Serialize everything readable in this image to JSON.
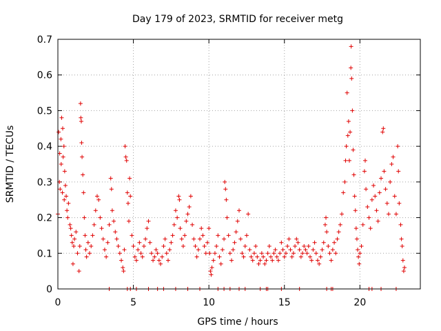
{
  "chart_data": {
    "type": "scatter",
    "title": "Day 179 of 2023, SRMTID for receiver metg",
    "xlabel": "GPS time / hours",
    "ylabel": "SRMTID / TECUs",
    "xlim": [
      0,
      24
    ],
    "ylim": [
      0,
      0.7
    ],
    "x_ticks": [
      0,
      5,
      10,
      15,
      20
    ],
    "y_ticks": [
      0,
      0.1,
      0.2,
      0.3,
      0.4,
      0.5,
      0.6,
      0.7
    ],
    "x_tick_labels": [
      "0",
      "5",
      "10",
      "15",
      "20"
    ],
    "y_tick_labels": [
      "0",
      "0.1",
      "0.2",
      "0.3",
      "0.4",
      "0.5",
      "0.6",
      "0.7"
    ],
    "grid": true,
    "marker": "+",
    "color": "#e00000",
    "series": [
      {
        "name": "SRMTID",
        "points": [
          [
            0.0,
            0.21
          ],
          [
            0.05,
            0.44
          ],
          [
            0.1,
            0.3
          ],
          [
            0.12,
            0.38
          ],
          [
            0.15,
            0.28
          ],
          [
            0.2,
            0.42
          ],
          [
            0.22,
            0.35
          ],
          [
            0.25,
            0.48
          ],
          [
            0.3,
            0.27
          ],
          [
            0.32,
            0.45
          ],
          [
            0.35,
            0.37
          ],
          [
            0.4,
            0.4
          ],
          [
            0.42,
            0.25
          ],
          [
            0.45,
            0.33
          ],
          [
            0.5,
            0.29
          ],
          [
            0.55,
            0.26
          ],
          [
            0.6,
            0.22
          ],
          [
            0.65,
            0.2
          ],
          [
            0.7,
            0.24
          ],
          [
            0.8,
            0.18
          ],
          [
            0.85,
            0.17
          ],
          [
            0.9,
            0.15
          ],
          [
            0.95,
            0.13
          ],
          [
            1.0,
            0.07
          ],
          [
            1.05,
            0.12
          ],
          [
            1.1,
            0.14
          ],
          [
            1.2,
            0.16
          ],
          [
            1.3,
            0.1
          ],
          [
            1.4,
            0.05
          ],
          [
            1.45,
            0.12
          ],
          [
            1.5,
            0.52
          ],
          [
            1.52,
            0.48
          ],
          [
            1.55,
            0.47
          ],
          [
            1.57,
            0.41
          ],
          [
            1.6,
            0.37
          ],
          [
            1.65,
            0.32
          ],
          [
            1.7,
            0.27
          ],
          [
            1.75,
            0.2
          ],
          [
            1.8,
            0.15
          ],
          [
            1.85,
            0.11
          ],
          [
            1.9,
            0.09
          ],
          [
            2.0,
            0.13
          ],
          [
            2.1,
            0.1
          ],
          [
            2.2,
            0.12
          ],
          [
            2.3,
            0.15
          ],
          [
            2.4,
            0.18
          ],
          [
            2.5,
            0.22
          ],
          [
            2.6,
            0.26
          ],
          [
            2.7,
            0.25
          ],
          [
            2.8,
            0.2
          ],
          [
            2.9,
            0.17
          ],
          [
            3.0,
            0.14
          ],
          [
            3.1,
            0.11
          ],
          [
            3.2,
            0.09
          ],
          [
            3.3,
            0.13
          ],
          [
            3.4,
            0.18
          ],
          [
            3.5,
            0.31
          ],
          [
            3.55,
            0.28
          ],
          [
            3.6,
            0.22
          ],
          [
            3.7,
            0.19
          ],
          [
            3.8,
            0.16
          ],
          [
            3.9,
            0.14
          ],
          [
            4.0,
            0.12
          ],
          [
            4.1,
            0.1
          ],
          [
            4.2,
            0.08
          ],
          [
            4.3,
            0.06
          ],
          [
            4.35,
            0.05
          ],
          [
            4.4,
            0.11
          ],
          [
            4.45,
            0.4
          ],
          [
            4.5,
            0.37
          ],
          [
            4.55,
            0.36
          ],
          [
            4.6,
            0.27
          ],
          [
            4.65,
            0.24
          ],
          [
            4.7,
            0.19
          ],
          [
            4.75,
            0.31
          ],
          [
            4.8,
            0.26
          ],
          [
            4.9,
            0.15
          ],
          [
            5.0,
            0.12
          ],
          [
            5.1,
            0.09
          ],
          [
            5.2,
            0.08
          ],
          [
            5.3,
            0.11
          ],
          [
            5.4,
            0.13
          ],
          [
            5.5,
            0.1
          ],
          [
            5.6,
            0.09
          ],
          [
            5.7,
            0.12
          ],
          [
            5.8,
            0.14
          ],
          [
            5.9,
            0.17
          ],
          [
            6.0,
            0.19
          ],
          [
            6.1,
            0.13
          ],
          [
            6.2,
            0.1
          ],
          [
            6.3,
            0.08
          ],
          [
            6.4,
            0.09
          ],
          [
            6.5,
            0.11
          ],
          [
            6.6,
            0.1
          ],
          [
            6.7,
            0.08
          ],
          [
            6.8,
            0.07
          ],
          [
            6.9,
            0.09
          ],
          [
            7.0,
            0.12
          ],
          [
            7.1,
            0.14
          ],
          [
            7.2,
            0.1
          ],
          [
            7.3,
            0.08
          ],
          [
            7.4,
            0.11
          ],
          [
            7.5,
            0.13
          ],
          [
            7.6,
            0.15
          ],
          [
            7.7,
            0.18
          ],
          [
            7.8,
            0.22
          ],
          [
            7.9,
            0.2
          ],
          [
            8.0,
            0.26
          ],
          [
            8.05,
            0.25
          ],
          [
            8.1,
            0.17
          ],
          [
            8.2,
            0.14
          ],
          [
            8.3,
            0.12
          ],
          [
            8.4,
            0.15
          ],
          [
            8.5,
            0.19
          ],
          [
            8.6,
            0.21
          ],
          [
            8.7,
            0.23
          ],
          [
            8.8,
            0.26
          ],
          [
            8.9,
            0.18
          ],
          [
            9.0,
            0.14
          ],
          [
            9.1,
            0.12
          ],
          [
            9.2,
            0.09
          ],
          [
            9.3,
            0.11
          ],
          [
            9.4,
            0.14
          ],
          [
            9.5,
            0.17
          ],
          [
            9.6,
            0.15
          ],
          [
            9.7,
            0.12
          ],
          [
            9.8,
            0.1
          ],
          [
            9.9,
            0.13
          ],
          [
            10.0,
            0.17
          ],
          [
            10.05,
            0.1
          ],
          [
            10.1,
            0.05
          ],
          [
            10.15,
            0.04
          ],
          [
            10.2,
            0.06
          ],
          [
            10.3,
            0.08
          ],
          [
            10.4,
            0.1
          ],
          [
            10.5,
            0.12
          ],
          [
            10.6,
            0.15
          ],
          [
            10.7,
            0.09
          ],
          [
            10.8,
            0.07
          ],
          [
            10.9,
            0.11
          ],
          [
            11.0,
            0.14
          ],
          [
            11.05,
            0.3
          ],
          [
            11.1,
            0.28
          ],
          [
            11.15,
            0.25
          ],
          [
            11.2,
            0.2
          ],
          [
            11.3,
            0.15
          ],
          [
            11.4,
            0.1
          ],
          [
            11.5,
            0.08
          ],
          [
            11.6,
            0.11
          ],
          [
            11.7,
            0.13
          ],
          [
            11.8,
            0.16
          ],
          [
            11.9,
            0.19
          ],
          [
            12.0,
            0.22
          ],
          [
            12.1,
            0.14
          ],
          [
            12.2,
            0.1
          ],
          [
            12.3,
            0.09
          ],
          [
            12.4,
            0.12
          ],
          [
            12.5,
            0.15
          ],
          [
            12.6,
            0.21
          ],
          [
            12.7,
            0.11
          ],
          [
            12.8,
            0.09
          ],
          [
            12.9,
            0.08
          ],
          [
            13.0,
            0.1
          ],
          [
            13.1,
            0.12
          ],
          [
            13.2,
            0.09
          ],
          [
            13.3,
            0.07
          ],
          [
            13.4,
            0.08
          ],
          [
            13.5,
            0.1
          ],
          [
            13.6,
            0.09
          ],
          [
            13.7,
            0.07
          ],
          [
            13.8,
            0.08
          ],
          [
            13.9,
            0.1
          ],
          [
            14.0,
            0.12
          ],
          [
            14.1,
            0.09
          ],
          [
            14.2,
            0.08
          ],
          [
            14.3,
            0.1
          ],
          [
            14.4,
            0.11
          ],
          [
            14.5,
            0.09
          ],
          [
            14.6,
            0.08
          ],
          [
            14.7,
            0.1
          ],
          [
            14.8,
            0.13
          ],
          [
            14.9,
            0.11
          ],
          [
            15.0,
            0.09
          ],
          [
            15.1,
            0.1
          ],
          [
            15.2,
            0.12
          ],
          [
            15.3,
            0.14
          ],
          [
            15.4,
            0.11
          ],
          [
            15.5,
            0.09
          ],
          [
            15.6,
            0.1
          ],
          [
            15.7,
            0.12
          ],
          [
            15.8,
            0.14
          ],
          [
            15.9,
            0.13
          ],
          [
            16.0,
            0.11
          ],
          [
            16.1,
            0.09
          ],
          [
            16.2,
            0.1
          ],
          [
            16.3,
            0.12
          ],
          [
            16.4,
            0.11
          ],
          [
            16.5,
            0.1
          ],
          [
            16.6,
            0.12
          ],
          [
            16.7,
            0.09
          ],
          [
            16.8,
            0.08
          ],
          [
            16.9,
            0.11
          ],
          [
            17.0,
            0.13
          ],
          [
            17.1,
            0.1
          ],
          [
            17.2,
            0.08
          ],
          [
            17.3,
            0.07
          ],
          [
            17.4,
            0.09
          ],
          [
            17.5,
            0.11
          ],
          [
            17.6,
            0.13
          ],
          [
            17.7,
            0.18
          ],
          [
            17.75,
            0.2
          ],
          [
            17.8,
            0.16
          ],
          [
            17.9,
            0.12
          ],
          [
            18.0,
            0.1
          ],
          [
            18.1,
            0.08
          ],
          [
            18.2,
            0.11
          ],
          [
            18.3,
            0.13
          ],
          [
            18.4,
            0.1
          ],
          [
            18.5,
            0.14
          ],
          [
            18.6,
            0.16
          ],
          [
            18.7,
            0.18
          ],
          [
            18.8,
            0.21
          ],
          [
            18.9,
            0.27
          ],
          [
            19.0,
            0.3
          ],
          [
            19.05,
            0.36
          ],
          [
            19.1,
            0.4
          ],
          [
            19.15,
            0.55
          ],
          [
            19.2,
            0.43
          ],
          [
            19.25,
            0.47
          ],
          [
            19.3,
            0.36
          ],
          [
            19.35,
            0.44
          ],
          [
            19.4,
            0.62
          ],
          [
            19.42,
            0.68
          ],
          [
            19.45,
            0.59
          ],
          [
            19.5,
            0.5
          ],
          [
            19.55,
            0.39
          ],
          [
            19.6,
            0.32
          ],
          [
            19.65,
            0.26
          ],
          [
            19.7,
            0.22
          ],
          [
            19.75,
            0.17
          ],
          [
            19.8,
            0.14
          ],
          [
            19.85,
            0.11
          ],
          [
            19.9,
            0.09
          ],
          [
            19.95,
            0.07
          ],
          [
            20.0,
            0.1
          ],
          [
            20.1,
            0.12
          ],
          [
            20.2,
            0.18
          ],
          [
            20.3,
            0.33
          ],
          [
            20.35,
            0.36
          ],
          [
            20.4,
            0.28
          ],
          [
            20.5,
            0.23
          ],
          [
            20.6,
            0.2
          ],
          [
            20.7,
            0.17
          ],
          [
            20.8,
            0.25
          ],
          [
            20.9,
            0.29
          ],
          [
            21.0,
            0.26
          ],
          [
            21.1,
            0.22
          ],
          [
            21.2,
            0.19
          ],
          [
            21.3,
            0.27
          ],
          [
            21.4,
            0.31
          ],
          [
            21.5,
            0.44
          ],
          [
            21.55,
            0.45
          ],
          [
            21.6,
            0.33
          ],
          [
            21.7,
            0.28
          ],
          [
            21.8,
            0.24
          ],
          [
            21.9,
            0.21
          ],
          [
            22.0,
            0.3
          ],
          [
            22.1,
            0.35
          ],
          [
            22.2,
            0.37
          ],
          [
            22.3,
            0.26
          ],
          [
            22.4,
            0.21
          ],
          [
            22.5,
            0.4
          ],
          [
            22.55,
            0.33
          ],
          [
            22.6,
            0.24
          ],
          [
            22.7,
            0.18
          ],
          [
            22.75,
            0.14
          ],
          [
            22.8,
            0.12
          ],
          [
            22.85,
            0.08
          ],
          [
            22.9,
            0.05
          ],
          [
            22.95,
            0.06
          ],
          [
            3.4,
            0.0
          ],
          [
            4.6,
            0.0
          ],
          [
            4.8,
            0.0
          ],
          [
            5.2,
            0.0
          ],
          [
            6.0,
            0.0
          ],
          [
            6.6,
            0.0
          ],
          [
            7.0,
            0.0
          ],
          [
            7.8,
            0.0
          ],
          [
            8.6,
            0.0
          ],
          [
            9.4,
            0.0
          ],
          [
            10.6,
            0.0
          ],
          [
            11.0,
            0.0
          ],
          [
            11.4,
            0.0
          ],
          [
            12.0,
            0.0
          ],
          [
            12.4,
            0.0
          ],
          [
            13.4,
            0.0
          ],
          [
            13.8,
            0.0
          ],
          [
            13.9,
            0.0
          ],
          [
            14.8,
            0.0
          ],
          [
            16.0,
            0.0
          ],
          [
            17.8,
            0.0
          ],
          [
            18.1,
            0.0
          ],
          [
            18.2,
            0.0
          ],
          [
            20.6,
            0.0
          ],
          [
            20.8,
            0.0
          ],
          [
            21.4,
            0.0
          ],
          [
            22.4,
            0.0
          ]
        ]
      }
    ]
  }
}
